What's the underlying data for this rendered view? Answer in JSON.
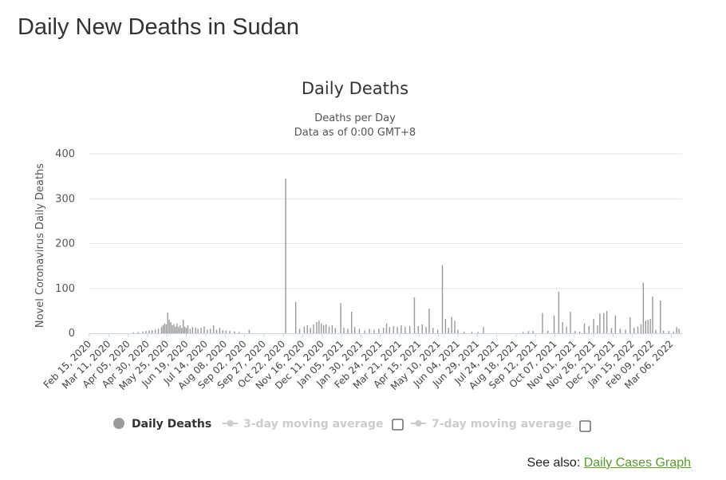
{
  "page": {
    "title": "Daily New Deaths in Sudan",
    "see_also_label": "See also:",
    "see_also_link": "Daily Cases Graph"
  },
  "chart_data": {
    "type": "bar",
    "title": "Daily Deaths",
    "subtitle_line1": "Deaths per Day",
    "subtitle_line2": "Data as of 0:00 GMT+8",
    "ylabel": "Novel Coronavirus Daily Deaths",
    "xlabel": "",
    "ylim": [
      0,
      400
    ],
    "yticks": [
      0,
      100,
      200,
      300,
      400
    ],
    "x_start": "2020-02-15",
    "x_end": "2022-03-20",
    "xtick_labels": [
      "Feb 15, 2020",
      "Mar 11, 2020",
      "Apr 05, 2020",
      "Apr 30, 2020",
      "May 25, 2020",
      "Jun 19, 2020",
      "Jul 14, 2020",
      "Aug 08, 2020",
      "Sep 02, 2020",
      "Sep 27, 2020",
      "Oct 22, 2020",
      "Nov 16, 2020",
      "Dec 11, 2020",
      "Jan 05, 2021",
      "Jan 30, 2021",
      "Feb 24, 2021",
      "Mar 21, 2021",
      "Apr 15, 2021",
      "May 10, 2021",
      "Jun 04, 2021",
      "Jun 29, 2021",
      "Jul 24, 2021",
      "Aug 18, 2021",
      "Sep 12, 2021",
      "Oct 07, 2021",
      "Nov 01, 2021",
      "Nov 26, 2021",
      "Dec 21, 2021",
      "Jan 15, 2022",
      "Feb 09, 2022",
      "Mar 06, 2022"
    ],
    "grid": true,
    "bar_color": "#999999",
    "legend": [
      {
        "label": "Daily Deaths",
        "color": "#999999",
        "active": true
      },
      {
        "label": "3-day moving average",
        "color": "#cccccc",
        "active": false
      },
      {
        "label": "7-day moving average",
        "color": "#cccccc",
        "active": false
      }
    ],
    "series": [
      {
        "name": "Daily Deaths",
        "points": [
          [
            "2020-04-12",
            2
          ],
          [
            "2020-04-18",
            3
          ],
          [
            "2020-04-24",
            4
          ],
          [
            "2020-04-28",
            5
          ],
          [
            "2020-05-02",
            6
          ],
          [
            "2020-05-06",
            7
          ],
          [
            "2020-05-10",
            8
          ],
          [
            "2020-05-14",
            10
          ],
          [
            "2020-05-18",
            14
          ],
          [
            "2020-05-20",
            18
          ],
          [
            "2020-05-22",
            22
          ],
          [
            "2020-05-24",
            20
          ],
          [
            "2020-05-26",
            46
          ],
          [
            "2020-05-28",
            30
          ],
          [
            "2020-05-30",
            25
          ],
          [
            "2020-06-01",
            18
          ],
          [
            "2020-06-03",
            20
          ],
          [
            "2020-06-05",
            15
          ],
          [
            "2020-06-07",
            22
          ],
          [
            "2020-06-09",
            14
          ],
          [
            "2020-06-11",
            18
          ],
          [
            "2020-06-13",
            12
          ],
          [
            "2020-06-15",
            30
          ],
          [
            "2020-06-17",
            15
          ],
          [
            "2020-06-19",
            12
          ],
          [
            "2020-06-21",
            18
          ],
          [
            "2020-06-24",
            10
          ],
          [
            "2020-06-27",
            14
          ],
          [
            "2020-07-01",
            12
          ],
          [
            "2020-07-04",
            10
          ],
          [
            "2020-07-08",
            12
          ],
          [
            "2020-07-12",
            15
          ],
          [
            "2020-07-16",
            8
          ],
          [
            "2020-07-20",
            10
          ],
          [
            "2020-07-24",
            18
          ],
          [
            "2020-07-28",
            8
          ],
          [
            "2020-08-01",
            12
          ],
          [
            "2020-08-05",
            7
          ],
          [
            "2020-08-09",
            6
          ],
          [
            "2020-08-14",
            5
          ],
          [
            "2020-08-20",
            4
          ],
          [
            "2020-08-26",
            3
          ],
          [
            "2020-09-08",
            8
          ],
          [
            "2020-10-25",
            345
          ],
          [
            "2020-11-07",
            70
          ],
          [
            "2020-11-12",
            10
          ],
          [
            "2020-11-18",
            15
          ],
          [
            "2020-11-22",
            18
          ],
          [
            "2020-11-26",
            12
          ],
          [
            "2020-11-30",
            20
          ],
          [
            "2020-12-04",
            25
          ],
          [
            "2020-12-07",
            28
          ],
          [
            "2020-12-10",
            22
          ],
          [
            "2020-12-13",
            18
          ],
          [
            "2020-12-16",
            20
          ],
          [
            "2020-12-20",
            15
          ],
          [
            "2020-12-24",
            18
          ],
          [
            "2020-12-28",
            12
          ],
          [
            "2021-01-04",
            67
          ],
          [
            "2021-01-08",
            12
          ],
          [
            "2021-01-13",
            10
          ],
          [
            "2021-01-18",
            48
          ],
          [
            "2021-01-22",
            14
          ],
          [
            "2021-01-28",
            10
          ],
          [
            "2021-02-04",
            6
          ],
          [
            "2021-02-10",
            10
          ],
          [
            "2021-02-16",
            8
          ],
          [
            "2021-02-22",
            10
          ],
          [
            "2021-02-28",
            12
          ],
          [
            "2021-03-04",
            22
          ],
          [
            "2021-03-08",
            14
          ],
          [
            "2021-03-13",
            16
          ],
          [
            "2021-03-18",
            14
          ],
          [
            "2021-03-23",
            18
          ],
          [
            "2021-03-28",
            14
          ],
          [
            "2021-04-03",
            16
          ],
          [
            "2021-04-09",
            80
          ],
          [
            "2021-04-14",
            16
          ],
          [
            "2021-04-19",
            20
          ],
          [
            "2021-04-24",
            14
          ],
          [
            "2021-04-28",
            55
          ],
          [
            "2021-05-03",
            12
          ],
          [
            "2021-05-09",
            8
          ],
          [
            "2021-05-15",
            152
          ],
          [
            "2021-05-19",
            32
          ],
          [
            "2021-05-23",
            12
          ],
          [
            "2021-05-27",
            36
          ],
          [
            "2021-05-31",
            28
          ],
          [
            "2021-06-04",
            8
          ],
          [
            "2021-06-12",
            4
          ],
          [
            "2021-06-22",
            3
          ],
          [
            "2021-06-30",
            3
          ],
          [
            "2021-07-07",
            14
          ],
          [
            "2021-08-27",
            3
          ],
          [
            "2021-09-03",
            5
          ],
          [
            "2021-09-09",
            5
          ],
          [
            "2021-09-21",
            45
          ],
          [
            "2021-09-28",
            6
          ],
          [
            "2021-10-06",
            40
          ],
          [
            "2021-10-12",
            93
          ],
          [
            "2021-10-17",
            25
          ],
          [
            "2021-10-22",
            15
          ],
          [
            "2021-10-27",
            48
          ],
          [
            "2021-11-02",
            5
          ],
          [
            "2021-11-08",
            4
          ],
          [
            "2021-11-14",
            22
          ],
          [
            "2021-11-20",
            16
          ],
          [
            "2021-11-26",
            32
          ],
          [
            "2021-12-01",
            18
          ],
          [
            "2021-12-04",
            44
          ],
          [
            "2021-12-09",
            45
          ],
          [
            "2021-12-13",
            50
          ],
          [
            "2021-12-19",
            12
          ],
          [
            "2021-12-24",
            40
          ],
          [
            "2021-12-30",
            10
          ],
          [
            "2022-01-06",
            8
          ],
          [
            "2022-01-12",
            36
          ],
          [
            "2022-01-17",
            12
          ],
          [
            "2022-01-22",
            15
          ],
          [
            "2022-01-26",
            20
          ],
          [
            "2022-01-29",
            113
          ],
          [
            "2022-02-01",
            28
          ],
          [
            "2022-02-04",
            30
          ],
          [
            "2022-02-07",
            32
          ],
          [
            "2022-02-10",
            82
          ],
          [
            "2022-02-14",
            8
          ],
          [
            "2022-02-20",
            73
          ],
          [
            "2022-02-24",
            6
          ],
          [
            "2022-03-03",
            5
          ],
          [
            "2022-03-09",
            4
          ],
          [
            "2022-03-13",
            14
          ],
          [
            "2022-03-16",
            10
          ]
        ]
      }
    ]
  }
}
